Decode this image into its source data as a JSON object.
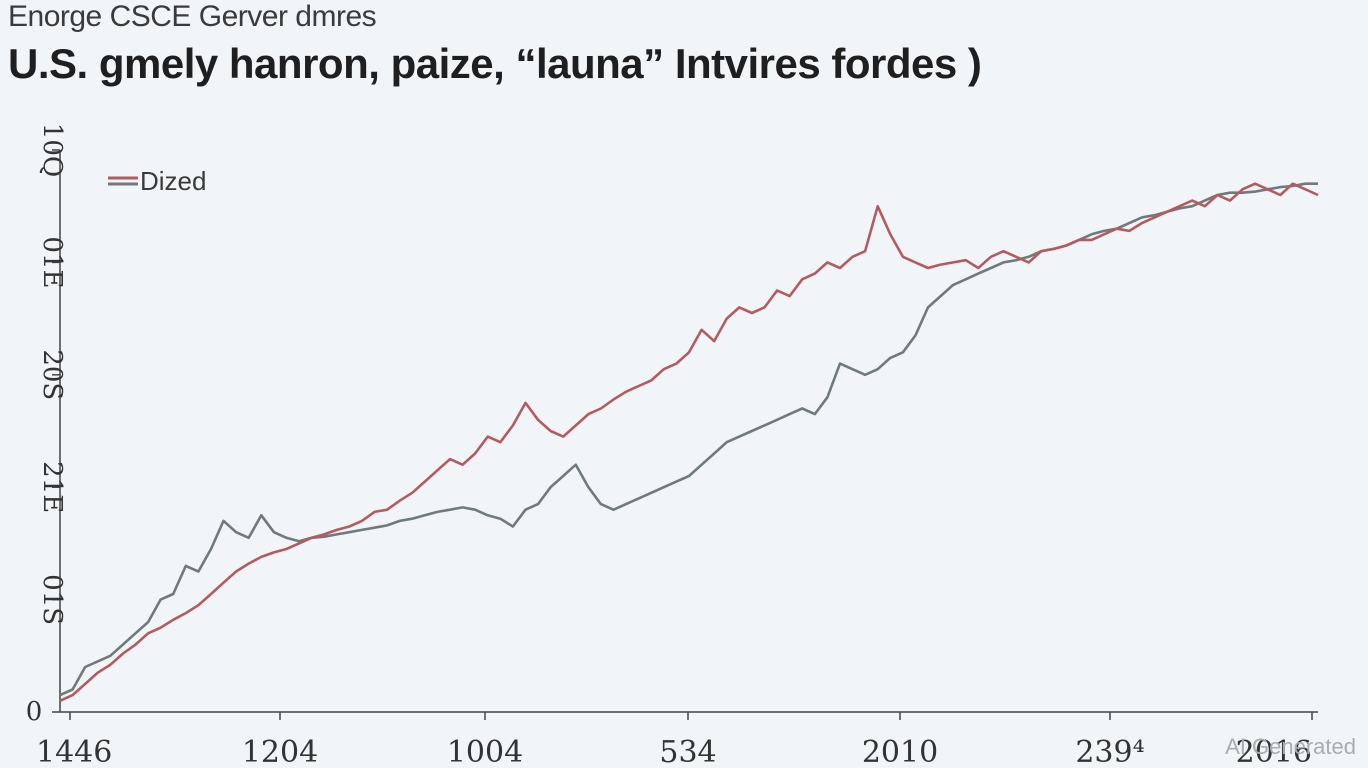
{
  "header": {
    "subtitle": "Enorge CSCE Gerver dmres",
    "title": "U.S. gmely hanron, paize, “launa” Intvires fordes )"
  },
  "watermark": "AI Generated",
  "chart_data": {
    "type": "line",
    "title": "U.S. gmely hanron, paize, “launa” Intvires fordes )",
    "subtitle": "Enorge CSCE Gerver dmres",
    "xlabel": "",
    "ylabel": "",
    "x_tick_labels": [
      "1446",
      "1204",
      "1004",
      "534",
      "2010",
      "239⁴",
      "2016"
    ],
    "y_tick_labels": [
      "0",
      "01S",
      "21E",
      "20S",
      "01E",
      "10Q"
    ],
    "xlim": [
      0,
      100
    ],
    "ylim": [
      0,
      5
    ],
    "grid": false,
    "legend": {
      "position": "top-left",
      "entries": [
        "Dized"
      ]
    },
    "colors": {
      "series_red": "#b45a62",
      "series_gray": "#6f7a7a",
      "axis": "#444444"
    },
    "series": [
      {
        "name": "Dized",
        "color": "#b45a62",
        "x": [
          0,
          1,
          2,
          3,
          4,
          5,
          6,
          7,
          8,
          9,
          10,
          11,
          12,
          13,
          14,
          15,
          16,
          17,
          18,
          19,
          20,
          21,
          22,
          23,
          24,
          25,
          26,
          27,
          28,
          29,
          30,
          31,
          32,
          33,
          34,
          35,
          36,
          37,
          38,
          39,
          40,
          41,
          42,
          43,
          44,
          45,
          46,
          47,
          48,
          49,
          50,
          51,
          52,
          53,
          54,
          55,
          56,
          57,
          58,
          59,
          60,
          61,
          62,
          63,
          64,
          65,
          66,
          67,
          68,
          69,
          70,
          71,
          72,
          73,
          74,
          75,
          76,
          77,
          78,
          79,
          80,
          81,
          82,
          83,
          84,
          85,
          86,
          87,
          88,
          89,
          90,
          91,
          92,
          93,
          94,
          95,
          96,
          97,
          98,
          99,
          100
        ],
        "values": [
          0.1,
          0.15,
          0.25,
          0.35,
          0.42,
          0.52,
          0.6,
          0.7,
          0.75,
          0.82,
          0.88,
          0.95,
          1.05,
          1.15,
          1.25,
          1.32,
          1.38,
          1.42,
          1.45,
          1.5,
          1.55,
          1.58,
          1.62,
          1.65,
          1.7,
          1.78,
          1.8,
          1.88,
          1.95,
          2.05,
          2.15,
          2.25,
          2.2,
          2.3,
          2.45,
          2.4,
          2.55,
          2.75,
          2.6,
          2.5,
          2.45,
          2.55,
          2.65,
          2.7,
          2.78,
          2.85,
          2.9,
          2.95,
          3.05,
          3.1,
          3.2,
          3.4,
          3.3,
          3.5,
          3.6,
          3.55,
          3.6,
          3.75,
          3.7,
          3.85,
          3.9,
          4.0,
          3.95,
          4.05,
          4.1,
          4.5,
          4.25,
          4.05,
          4.0,
          3.95,
          3.98,
          4.0,
          4.02,
          3.95,
          4.05,
          4.1,
          4.05,
          4.0,
          4.1,
          4.12,
          4.15,
          4.2,
          4.2,
          4.25,
          4.3,
          4.28,
          4.35,
          4.4,
          4.45,
          4.5,
          4.55,
          4.5,
          4.6,
          4.55,
          4.65,
          4.7,
          4.65,
          4.6,
          4.7,
          4.65,
          4.6
        ]
      },
      {
        "name": "",
        "color": "#6f7a7a",
        "x": [
          0,
          1,
          2,
          3,
          4,
          5,
          6,
          7,
          8,
          9,
          10,
          11,
          12,
          13,
          14,
          15,
          16,
          17,
          18,
          19,
          20,
          21,
          22,
          23,
          24,
          25,
          26,
          27,
          28,
          29,
          30,
          31,
          32,
          33,
          34,
          35,
          36,
          37,
          38,
          39,
          40,
          41,
          42,
          43,
          44,
          45,
          46,
          47,
          48,
          49,
          50,
          51,
          52,
          53,
          54,
          55,
          56,
          57,
          58,
          59,
          60,
          61,
          62,
          63,
          64,
          65,
          66,
          67,
          68,
          69,
          70,
          71,
          72,
          73,
          74,
          75,
          76,
          77,
          78,
          79,
          80,
          81,
          82,
          83,
          84,
          85,
          86,
          87,
          88,
          89,
          90,
          91,
          92,
          93,
          94,
          95,
          96,
          97,
          98,
          99,
          100
        ],
        "values": [
          0.15,
          0.2,
          0.4,
          0.45,
          0.5,
          0.6,
          0.7,
          0.8,
          1.0,
          1.05,
          1.3,
          1.25,
          1.45,
          1.7,
          1.6,
          1.55,
          1.75,
          1.6,
          1.55,
          1.52,
          1.55,
          1.56,
          1.58,
          1.6,
          1.62,
          1.64,
          1.66,
          1.7,
          1.72,
          1.75,
          1.78,
          1.8,
          1.82,
          1.8,
          1.75,
          1.72,
          1.65,
          1.8,
          1.85,
          2.0,
          2.1,
          2.2,
          2.0,
          1.85,
          1.8,
          1.85,
          1.9,
          1.95,
          2.0,
          2.05,
          2.1,
          2.2,
          2.3,
          2.4,
          2.45,
          2.5,
          2.55,
          2.6,
          2.65,
          2.7,
          2.65,
          2.8,
          3.1,
          3.05,
          3.0,
          3.05,
          3.15,
          3.2,
          3.35,
          3.6,
          3.7,
          3.8,
          3.85,
          3.9,
          3.95,
          4.0,
          4.02,
          4.05,
          4.1,
          4.12,
          4.15,
          4.2,
          4.25,
          4.28,
          4.3,
          4.35,
          4.4,
          4.42,
          4.45,
          4.48,
          4.5,
          4.55,
          4.6,
          4.62,
          4.62,
          4.63,
          4.65,
          4.67,
          4.68,
          4.7,
          4.7
        ]
      }
    ]
  }
}
